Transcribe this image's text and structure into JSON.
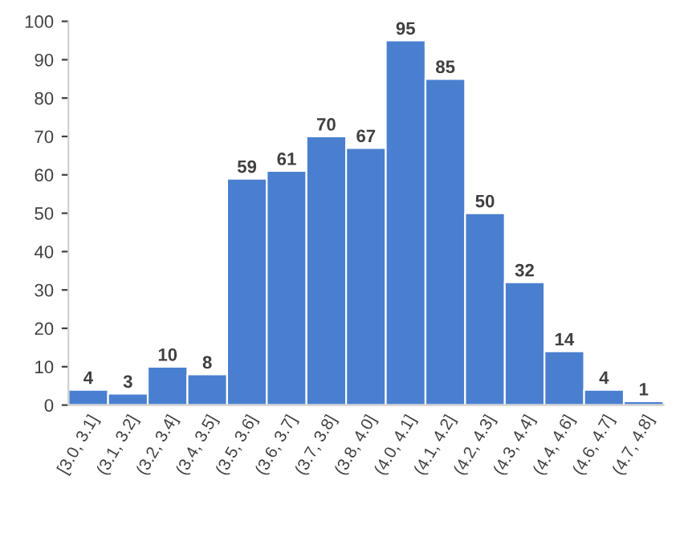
{
  "chart_data": {
    "type": "bar",
    "categories": [
      "[3.0, 3.1]",
      "(3.1, 3.2]",
      "(3.2, 3.4]",
      "(3.4, 3.5]",
      "(3.5, 3.6]",
      "(3.6, 3.7]",
      "(3.7, 3.8]",
      "(3.8, 4.0]",
      "(4.0, 4.1]",
      "(4.1, 4.2]",
      "(4.2, 4.3]",
      "(4.3, 4.4]",
      "(4.4, 4.6]",
      "(4.6, 4.7]",
      "(4.7, 4.8]"
    ],
    "values": [
      4,
      3,
      10,
      8,
      59,
      61,
      70,
      67,
      95,
      85,
      50,
      32,
      14,
      4,
      1
    ],
    "color": "#4a7fd0",
    "ylim": [
      0,
      100
    ],
    "yticks": [
      0,
      10,
      20,
      30,
      40,
      50,
      60,
      70,
      80,
      90,
      100
    ],
    "data_labels": true
  }
}
